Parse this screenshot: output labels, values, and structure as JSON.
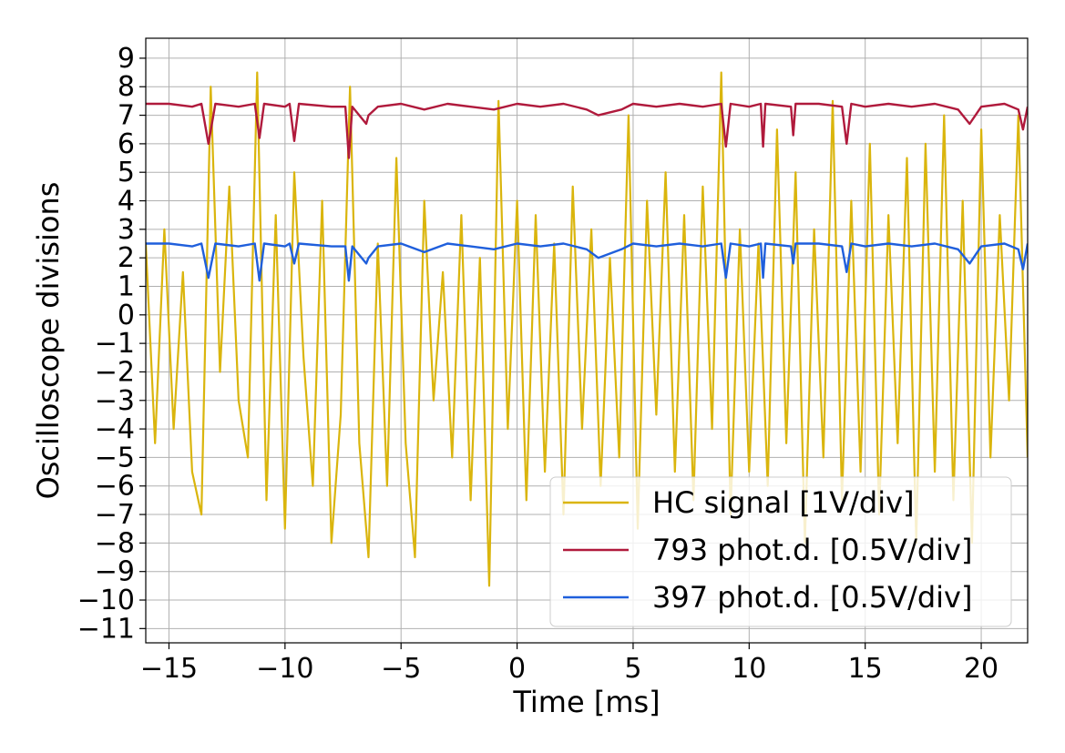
{
  "chart_data": {
    "type": "line",
    "xlabel": "Time [ms]",
    "ylabel": "Oscilloscope divisions",
    "xlim": [
      -16,
      22
    ],
    "ylim": [
      -11.5,
      9.7
    ],
    "xticks": [
      -15,
      -10,
      -5,
      0,
      5,
      10,
      15,
      20
    ],
    "xtick_labels": [
      "−15",
      "−10",
      "−5",
      "0",
      "5",
      "10",
      "15",
      "20"
    ],
    "yticks": [
      9,
      8,
      7,
      6,
      5,
      4,
      3,
      2,
      1,
      0,
      -1,
      -2,
      -3,
      -4,
      -5,
      -6,
      -7,
      -8,
      -9,
      -10,
      -11
    ],
    "ytick_labels": [
      "9",
      "8",
      "7",
      "6",
      "5",
      "4",
      "3",
      "2",
      "1",
      "0",
      "−1",
      "−2",
      "−3",
      "−4",
      "−5",
      "−6",
      "−7",
      "−8",
      "−9",
      "−10",
      "−11"
    ],
    "grid": true,
    "legend_position": "lower-right",
    "series": [
      {
        "name": "HC signal [1V/div]",
        "color": "#dab50d",
        "x": [
          -16.0,
          -15.6,
          -15.2,
          -14.8,
          -14.4,
          -14.0,
          -13.6,
          -13.2,
          -12.8,
          -12.4,
          -12.0,
          -11.6,
          -11.2,
          -10.8,
          -10.4,
          -10.0,
          -9.6,
          -9.2,
          -8.8,
          -8.4,
          -8.0,
          -7.6,
          -7.2,
          -6.8,
          -6.4,
          -6.0,
          -5.6,
          -5.2,
          -4.8,
          -4.4,
          -4.0,
          -3.6,
          -3.2,
          -2.8,
          -2.4,
          -2.0,
          -1.6,
          -1.2,
          -0.8,
          -0.4,
          0.0,
          0.4,
          0.8,
          1.2,
          1.6,
          2.0,
          2.4,
          2.8,
          3.2,
          3.6,
          4.0,
          4.4,
          4.8,
          5.2,
          5.6,
          6.0,
          6.4,
          6.8,
          7.2,
          7.6,
          8.0,
          8.4,
          8.8,
          9.2,
          9.6,
          10.0,
          10.4,
          10.8,
          11.2,
          11.6,
          12.0,
          12.4,
          12.8,
          13.2,
          13.6,
          14.0,
          14.4,
          14.8,
          15.2,
          15.6,
          16.0,
          16.4,
          16.8,
          17.2,
          17.6,
          18.0,
          18.4,
          18.8,
          19.2,
          19.6,
          20.0,
          20.4,
          20.8,
          21.2,
          21.6,
          22.0
        ],
        "y": [
          2.5,
          -4.5,
          3.0,
          -4.0,
          1.5,
          -5.5,
          -7.0,
          8.0,
          -2.0,
          4.5,
          -3.0,
          -5.0,
          8.5,
          -6.5,
          3.5,
          -7.5,
          5.0,
          -1.5,
          -6.0,
          4.0,
          -8.0,
          -3.5,
          8.0,
          -4.5,
          -8.5,
          2.5,
          -6.0,
          5.5,
          -4.5,
          -8.5,
          4.0,
          -3.0,
          1.5,
          -5.0,
          3.5,
          -6.5,
          2.0,
          -9.5,
          7.5,
          -4.0,
          4.0,
          -6.5,
          3.5,
          -5.5,
          2.5,
          -7.0,
          4.5,
          -4.0,
          3.0,
          -6.0,
          2.0,
          -5.0,
          7.0,
          -7.5,
          4.0,
          -3.5,
          5.0,
          -5.5,
          3.5,
          -6.5,
          4.5,
          -4.0,
          8.5,
          -7.0,
          3.0,
          -5.5,
          2.5,
          -6.0,
          6.5,
          -4.5,
          5.0,
          -8.0,
          3.0,
          -5.0,
          7.5,
          -6.5,
          4.0,
          -5.5,
          6.0,
          -7.0,
          3.5,
          -4.5,
          5.5,
          -8.0,
          6.0,
          -5.5,
          7.0,
          -6.5,
          4.0,
          -8.0,
          6.5,
          -5.0,
          3.5,
          -3.0,
          7.0,
          -5.0
        ]
      },
      {
        "name": "793 phot.d. [0.5V/div]",
        "color": "#b01a3c",
        "x": [
          -16.0,
          -15.0,
          -14.0,
          -13.6,
          -13.3,
          -13.0,
          -12.0,
          -11.3,
          -11.1,
          -10.9,
          -10.0,
          -9.8,
          -9.6,
          -9.4,
          -8.0,
          -7.4,
          -7.25,
          -7.1,
          -6.5,
          -6.4,
          -6.0,
          -5.0,
          -4.0,
          -3.0,
          -2.0,
          -1.0,
          0.0,
          1.0,
          2.0,
          3.0,
          3.5,
          4.5,
          5.0,
          6.0,
          7.0,
          8.0,
          8.8,
          9.0,
          9.2,
          10.0,
          10.5,
          10.6,
          10.7,
          11.8,
          11.9,
          12.0,
          13.0,
          14.0,
          14.2,
          14.4,
          15.0,
          16.0,
          17.0,
          18.0,
          19.0,
          19.5,
          20.0,
          21.0,
          21.6,
          21.8,
          22.0
        ],
        "y": [
          7.4,
          7.4,
          7.3,
          7.4,
          6.0,
          7.4,
          7.3,
          7.4,
          6.2,
          7.4,
          7.3,
          7.4,
          6.1,
          7.4,
          7.3,
          7.3,
          5.5,
          7.3,
          6.7,
          7.0,
          7.3,
          7.4,
          7.2,
          7.4,
          7.3,
          7.2,
          7.4,
          7.3,
          7.4,
          7.2,
          7.0,
          7.2,
          7.4,
          7.3,
          7.4,
          7.3,
          7.4,
          5.9,
          7.4,
          7.3,
          7.4,
          5.9,
          7.4,
          7.3,
          6.3,
          7.4,
          7.4,
          7.3,
          6.0,
          7.4,
          7.3,
          7.4,
          7.3,
          7.4,
          7.2,
          6.7,
          7.3,
          7.4,
          7.2,
          6.5,
          7.3
        ]
      },
      {
        "name": "397 phot.d. [0.5V/div]",
        "color": "#1f5fdc",
        "x": [
          -16.0,
          -15.0,
          -14.0,
          -13.6,
          -13.3,
          -13.0,
          -12.0,
          -11.3,
          -11.1,
          -10.9,
          -10.0,
          -9.8,
          -9.6,
          -9.4,
          -8.0,
          -7.4,
          -7.25,
          -7.1,
          -6.5,
          -6.4,
          -6.0,
          -5.0,
          -4.0,
          -3.0,
          -2.0,
          -1.0,
          0.0,
          1.0,
          2.0,
          3.0,
          3.5,
          4.5,
          5.0,
          6.0,
          7.0,
          8.0,
          8.8,
          9.0,
          9.2,
          10.0,
          10.5,
          10.6,
          10.7,
          11.8,
          11.9,
          12.0,
          13.0,
          14.0,
          14.2,
          14.4,
          15.0,
          16.0,
          17.0,
          18.0,
          19.0,
          19.5,
          20.0,
          21.0,
          21.6,
          21.8,
          22.0
        ],
        "y": [
          2.5,
          2.5,
          2.4,
          2.5,
          1.3,
          2.5,
          2.4,
          2.5,
          1.2,
          2.5,
          2.4,
          2.5,
          1.8,
          2.5,
          2.4,
          2.4,
          1.2,
          2.4,
          1.8,
          2.0,
          2.4,
          2.5,
          2.2,
          2.5,
          2.4,
          2.3,
          2.5,
          2.4,
          2.5,
          2.3,
          2.0,
          2.3,
          2.5,
          2.4,
          2.5,
          2.4,
          2.5,
          1.3,
          2.5,
          2.4,
          2.5,
          1.3,
          2.5,
          2.4,
          1.8,
          2.5,
          2.5,
          2.4,
          1.5,
          2.5,
          2.4,
          2.5,
          2.4,
          2.5,
          2.3,
          1.8,
          2.4,
          2.5,
          2.3,
          1.6,
          2.5
        ]
      }
    ]
  }
}
